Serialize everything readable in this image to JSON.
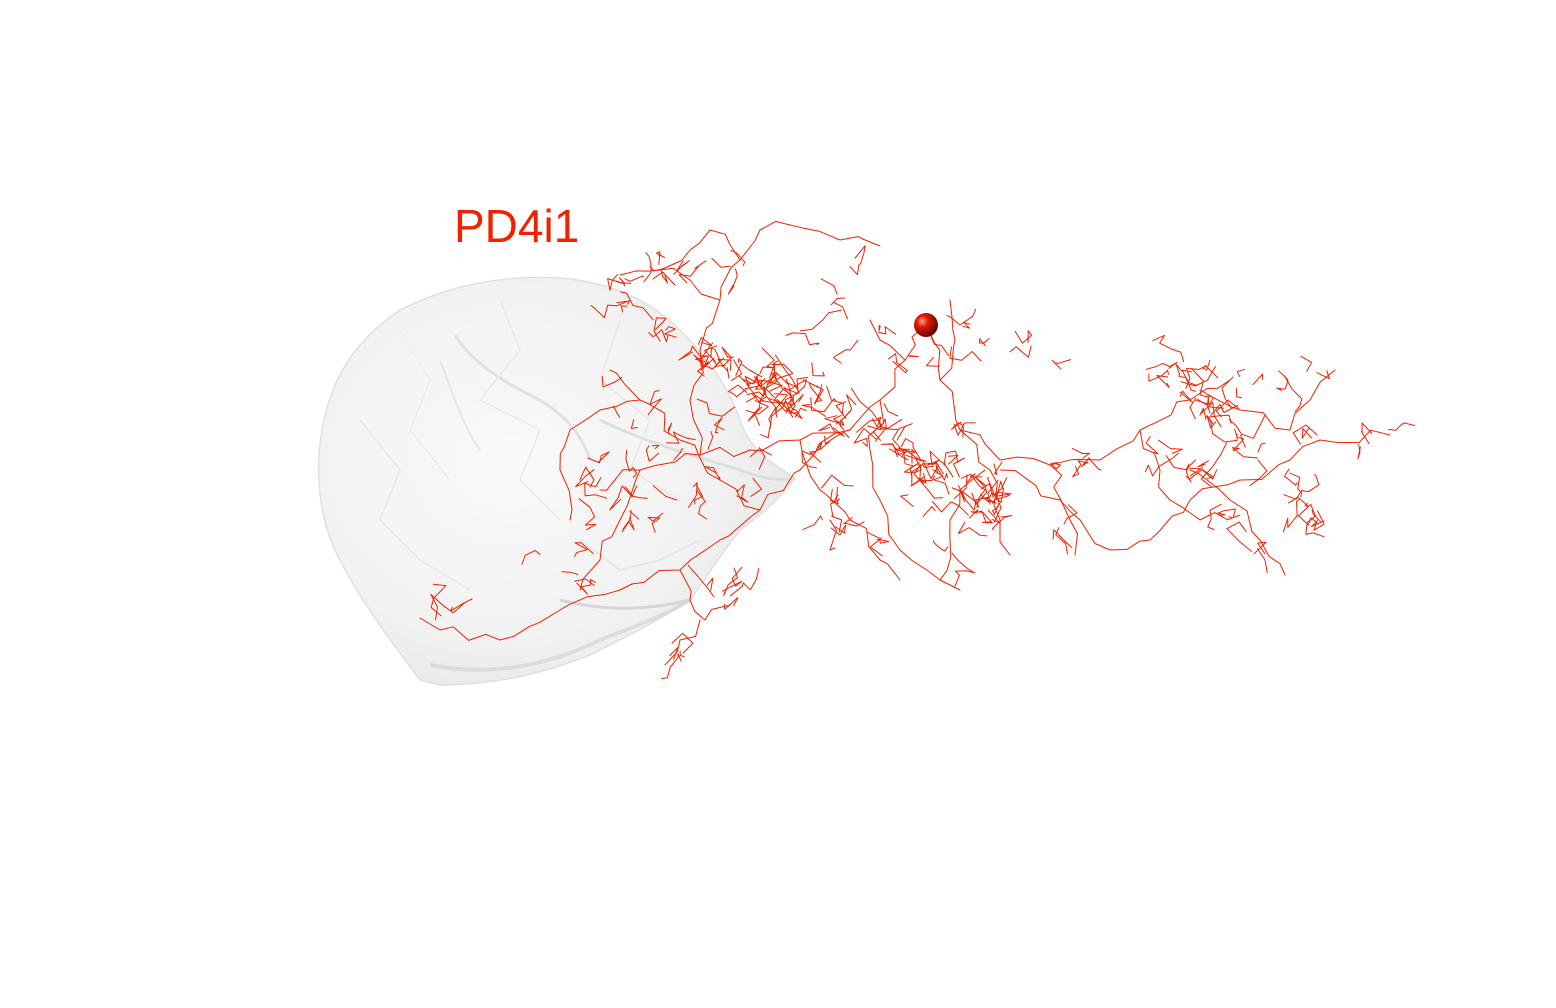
{
  "viewer": {
    "background_color": "#ffffff",
    "neuron": {
      "label": "PD4i1",
      "color": "#ee2200",
      "soma_color": "#cc1100"
    },
    "neuropil": {
      "color": "#eeeeee"
    }
  }
}
